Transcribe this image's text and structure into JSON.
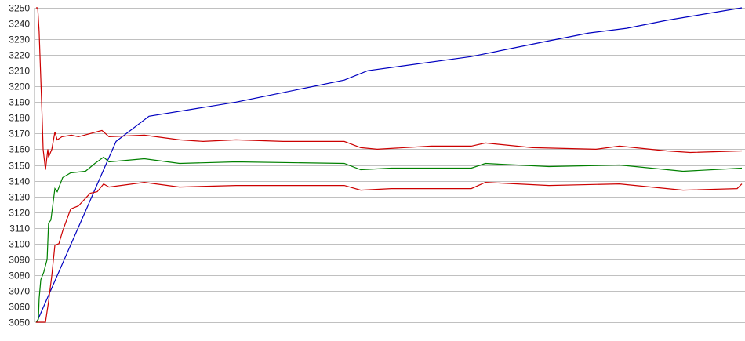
{
  "chart_data": {
    "type": "line",
    "title": "",
    "xlabel": "",
    "ylabel": "",
    "ylim": [
      3050,
      3250
    ],
    "xlim": [
      0,
      300
    ],
    "yticks": [
      3050,
      3060,
      3070,
      3080,
      3090,
      3100,
      3110,
      3120,
      3130,
      3140,
      3150,
      3160,
      3170,
      3180,
      3190,
      3200,
      3210,
      3220,
      3230,
      3240,
      3250
    ],
    "grid": true,
    "series": [
      {
        "name": "blue",
        "color": "#0000c0",
        "points": [
          [
            0.3,
            3050
          ],
          [
            34,
            3165
          ],
          [
            48,
            3181
          ],
          [
            85,
            3190
          ],
          [
            131,
            3204
          ],
          [
            141,
            3210
          ],
          [
            185,
            3219
          ],
          [
            218,
            3229
          ],
          [
            235,
            3234
          ],
          [
            251,
            3237
          ],
          [
            268,
            3242
          ],
          [
            300,
            3250
          ]
        ]
      },
      {
        "name": "upper red",
        "color": "#cc0000",
        "points": [
          [
            0,
            3250
          ],
          [
            0.7,
            3250
          ],
          [
            1.3,
            3235
          ],
          [
            2,
            3205
          ],
          [
            2.7,
            3175
          ],
          [
            3,
            3160
          ],
          [
            4,
            3147
          ],
          [
            5,
            3160
          ],
          [
            5.3,
            3155
          ],
          [
            6.7,
            3160
          ],
          [
            8,
            3171
          ],
          [
            9,
            3166
          ],
          [
            11,
            3168
          ],
          [
            15,
            3169
          ],
          [
            18,
            3168
          ],
          [
            23,
            3170
          ],
          [
            28,
            3172
          ],
          [
            31,
            3168
          ],
          [
            46,
            3169
          ],
          [
            61,
            3166
          ],
          [
            71,
            3165
          ],
          [
            85,
            3166
          ],
          [
            105,
            3165
          ],
          [
            131,
            3165
          ],
          [
            138,
            3161
          ],
          [
            145,
            3160
          ],
          [
            168,
            3162
          ],
          [
            185,
            3162
          ],
          [
            191,
            3164
          ],
          [
            211,
            3161
          ],
          [
            238,
            3160
          ],
          [
            248,
            3162
          ],
          [
            268,
            3159
          ],
          [
            278,
            3158
          ],
          [
            300,
            3159
          ]
        ]
      },
      {
        "name": "green",
        "color": "#008000",
        "points": [
          [
            0,
            3050
          ],
          [
            1,
            3052
          ],
          [
            1.3,
            3065
          ],
          [
            2,
            3077
          ],
          [
            3.3,
            3082
          ],
          [
            4.7,
            3090
          ],
          [
            5.3,
            3113
          ],
          [
            6.3,
            3115
          ],
          [
            8,
            3135
          ],
          [
            9,
            3133
          ],
          [
            11.3,
            3142
          ],
          [
            14.7,
            3145
          ],
          [
            21,
            3146
          ],
          [
            25,
            3151
          ],
          [
            28.7,
            3155
          ],
          [
            31,
            3152
          ],
          [
            46,
            3154
          ],
          [
            61,
            3151
          ],
          [
            85,
            3152
          ],
          [
            131,
            3151
          ],
          [
            138,
            3147
          ],
          [
            151,
            3148
          ],
          [
            185,
            3148
          ],
          [
            191,
            3151
          ],
          [
            218,
            3149
          ],
          [
            248,
            3150
          ],
          [
            275,
            3146
          ],
          [
            300,
            3148
          ]
        ]
      },
      {
        "name": "lower red",
        "color": "#cc0000",
        "points": [
          [
            0,
            3050
          ],
          [
            4,
            3050
          ],
          [
            5.3,
            3063
          ],
          [
            6.7,
            3080
          ],
          [
            8,
            3099
          ],
          [
            9.7,
            3100
          ],
          [
            11.3,
            3108
          ],
          [
            14.7,
            3122
          ],
          [
            18,
            3124
          ],
          [
            23,
            3132
          ],
          [
            26,
            3133
          ],
          [
            28.7,
            3138
          ],
          [
            31,
            3136
          ],
          [
            46,
            3139
          ],
          [
            61,
            3136
          ],
          [
            85,
            3137
          ],
          [
            131,
            3137
          ],
          [
            138,
            3134
          ],
          [
            151,
            3135
          ],
          [
            185,
            3135
          ],
          [
            191,
            3139
          ],
          [
            218,
            3137
          ],
          [
            248,
            3138
          ],
          [
            275,
            3134
          ],
          [
            298,
            3135
          ],
          [
            300,
            3138
          ]
        ]
      }
    ]
  }
}
